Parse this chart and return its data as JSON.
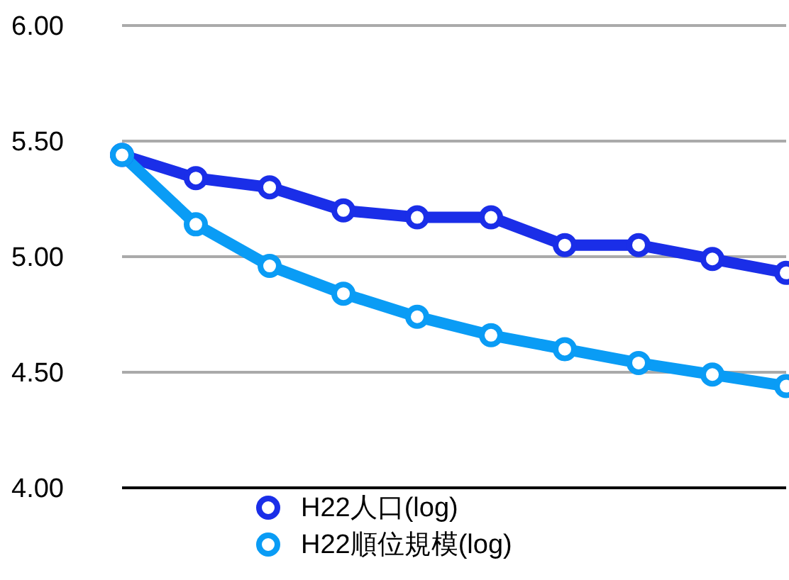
{
  "chart_data": {
    "type": "line",
    "categories": [
      null,
      null,
      null,
      null,
      null,
      null,
      null,
      null,
      null,
      null
    ],
    "series": [
      {
        "name": "H22人口(log)",
        "color": "#1a2ee8",
        "values": [
          5.44,
          5.34,
          5.3,
          5.2,
          5.17,
          5.17,
          5.05,
          5.05,
          4.99,
          4.93
        ]
      },
      {
        "name": "H22順位規模(log)",
        "color": "#0a9cf5",
        "values": [
          5.44,
          5.14,
          4.96,
          4.84,
          4.74,
          4.66,
          4.6,
          4.54,
          4.49,
          4.44
        ]
      }
    ],
    "ylim": [
      4,
      6
    ],
    "yticks": [
      {
        "value": 4,
        "label": "4.00"
      },
      {
        "value": 4.5,
        "label": "4.50"
      },
      {
        "value": 5,
        "label": "5.00"
      },
      {
        "value": 5.5,
        "label": "5.50"
      },
      {
        "value": 6,
        "label": "6.00"
      }
    ],
    "grid": "y",
    "legend": "bottom",
    "marker": "circle",
    "line_style": "solid"
  }
}
